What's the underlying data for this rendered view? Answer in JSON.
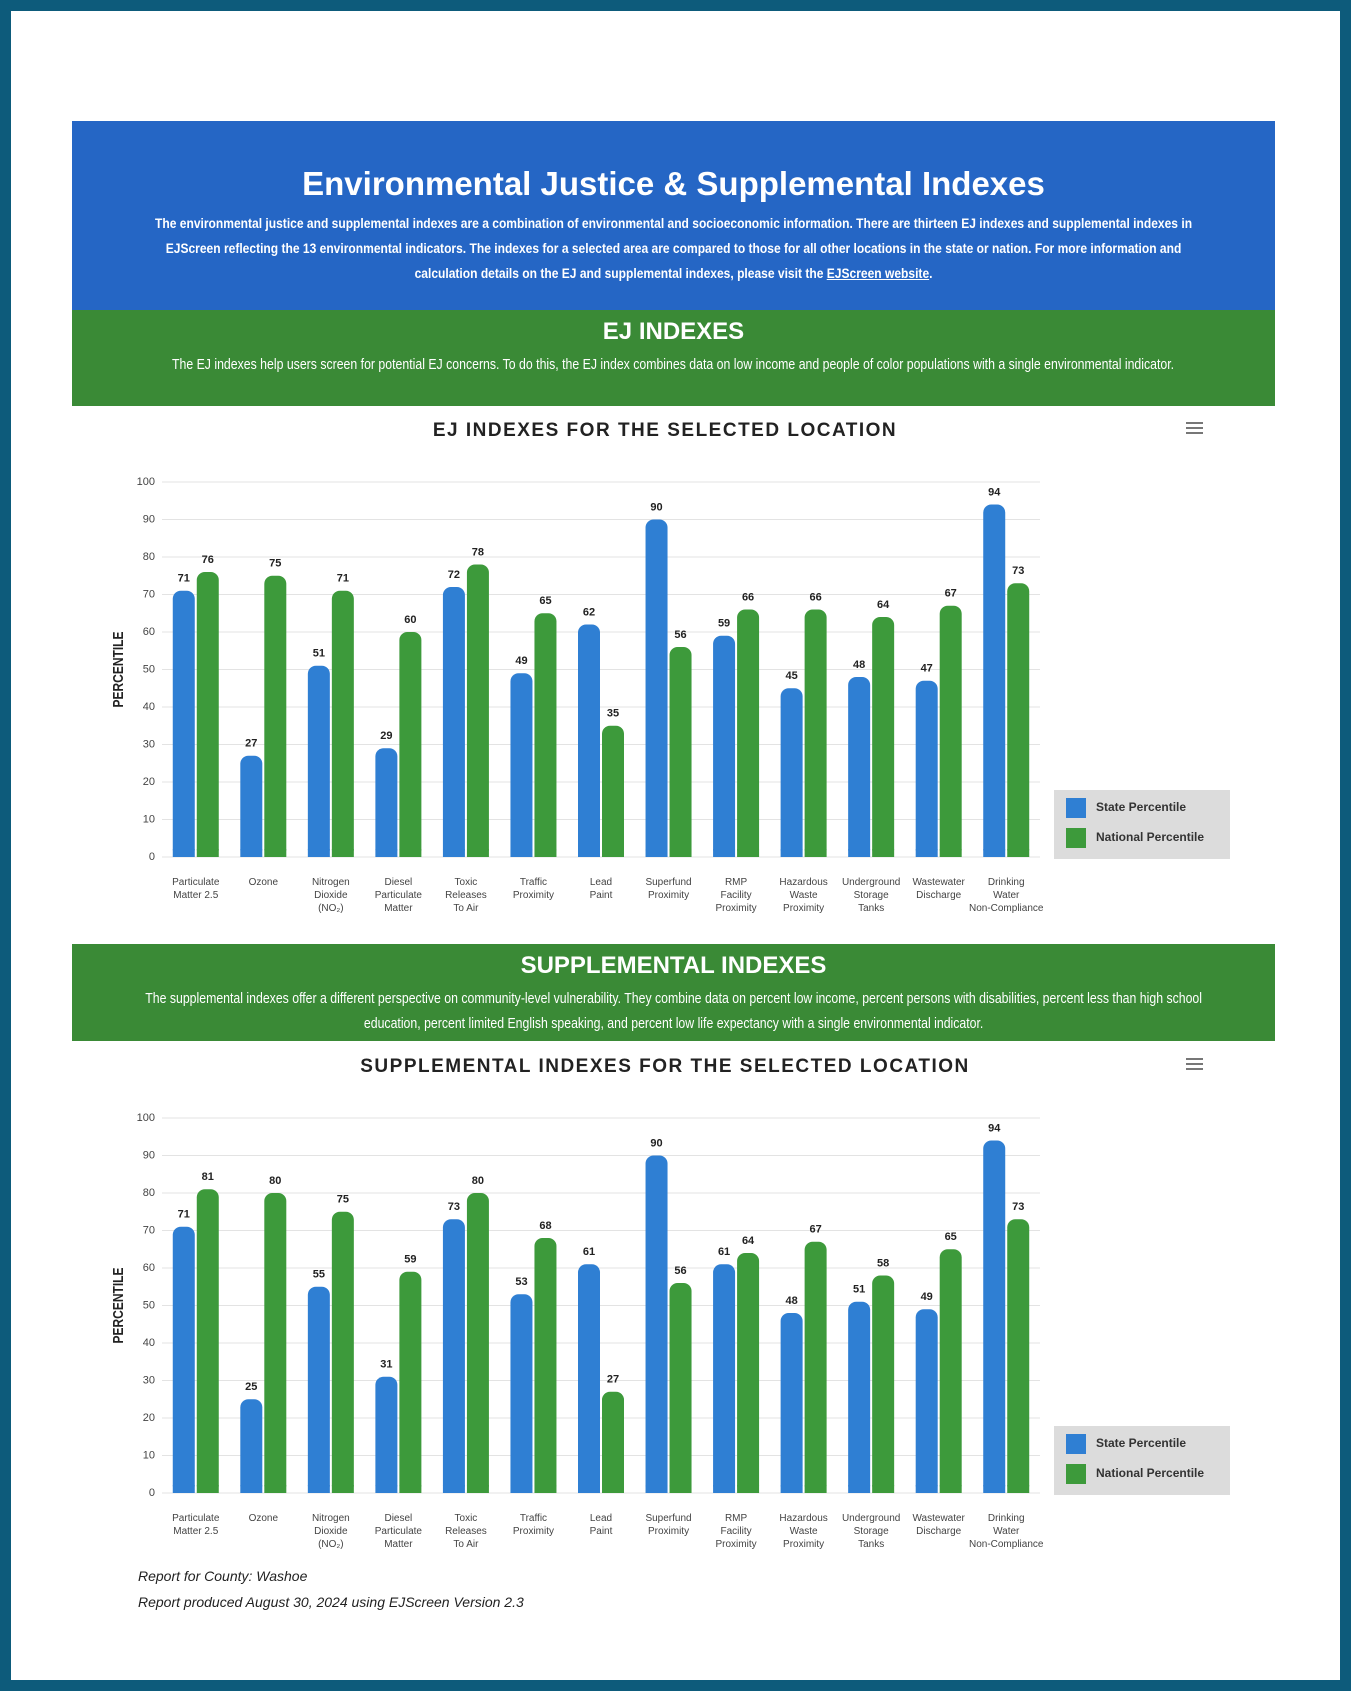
{
  "header": {
    "title": "Environmental Justice & Supplemental Indexes",
    "description": "The environmental justice and supplemental indexes are a combination of environmental and socioeconomic information. There are thirteen EJ indexes and supplemental indexes in EJScreen reflecting the 13 environmental indicators. The indexes for a selected area are compared to those for all other locations in the state or nation. For more information and calculation details on the EJ and supplemental indexes, please visit the ",
    "link": "EJScreen website",
    "description_end": "."
  },
  "ej_section": {
    "title": "EJ INDEXES",
    "text": "The EJ indexes help users screen for potential EJ concerns. To do this, the EJ index combines data on low income and people of color populations with a single environmental indicator."
  },
  "supplemental_section": {
    "title": "SUPPLEMENTAL INDEXES",
    "text": "The supplemental indexes offer a different perspective on community-level vulnerability. They combine data on percent low income, percent persons with disabilities, percent less than high school education, percent limited English speaking, and percent low life expectancy with a single environmental indicator."
  },
  "chart_data": [
    {
      "type": "bar",
      "title": "EJ INDEXES FOR THE SELECTED LOCATION",
      "y_label": "PERCENTILE",
      "categories": [
        "Particulate\nMatter 2.5",
        "Ozone",
        "Nitrogen\nDioxide\n(NO₂)",
        "Diesel\nParticulate\nMatter",
        "Toxic\nReleases\nTo Air",
        "Traffic\nProximity",
        "Lead\nPaint",
        "Superfund\nProximity",
        "RMP\nFacility\nProximity",
        "Hazardous\nWaste\nProximity",
        "Underground\nStorage\nTanks",
        "Wastewater\nDischarge",
        "Drinking\nWater\nNon-Compliance"
      ],
      "series": [
        {
          "name": "State Percentile",
          "color": "#2f7fd3",
          "values": [
            71,
            27,
            51,
            29,
            72,
            49,
            62,
            90,
            59,
            45,
            48,
            47,
            94
          ]
        },
        {
          "name": "National Percentile",
          "color": "#3d9a3b",
          "values": [
            76,
            75,
            71,
            60,
            78,
            65,
            35,
            56,
            66,
            66,
            64,
            67,
            73
          ]
        }
      ],
      "ylim": [
        0,
        100
      ],
      "yticks": [
        0,
        10,
        20,
        30,
        40,
        50,
        60,
        70,
        80,
        90,
        100
      ],
      "grid": true,
      "legend": "bottom-right"
    },
    {
      "type": "bar",
      "title": "SUPPLEMENTAL INDEXES FOR THE SELECTED LOCATION",
      "y_label": "PERCENTILE",
      "categories": [
        "Particulate\nMatter 2.5",
        "Ozone",
        "Nitrogen\nDioxide\n(NO₂)",
        "Diesel\nParticulate\nMatter",
        "Toxic\nReleases\nTo Air",
        "Traffic\nProximity",
        "Lead\nPaint",
        "Superfund\nProximity",
        "RMP\nFacility\nProximity",
        "Hazardous\nWaste\nProximity",
        "Underground\nStorage\nTanks",
        "Wastewater\nDischarge",
        "Drinking\nWater\nNon-Compliance"
      ],
      "series": [
        {
          "name": "State Percentile",
          "color": "#2f7fd3",
          "values": [
            71,
            25,
            55,
            31,
            73,
            53,
            61,
            90,
            61,
            48,
            51,
            49,
            94
          ]
        },
        {
          "name": "National Percentile",
          "color": "#3d9a3b",
          "values": [
            81,
            80,
            75,
            59,
            80,
            68,
            27,
            56,
            64,
            67,
            58,
            65,
            73
          ]
        }
      ],
      "ylim": [
        0,
        100
      ],
      "yticks": [
        0,
        10,
        20,
        30,
        40,
        50,
        60,
        70,
        80,
        90,
        100
      ],
      "grid": true,
      "legend": "bottom-right"
    }
  ],
  "footer": {
    "county": "Report for County: Washoe",
    "produced": "Report produced August 30, 2024 using EJScreen Version 2.3"
  }
}
